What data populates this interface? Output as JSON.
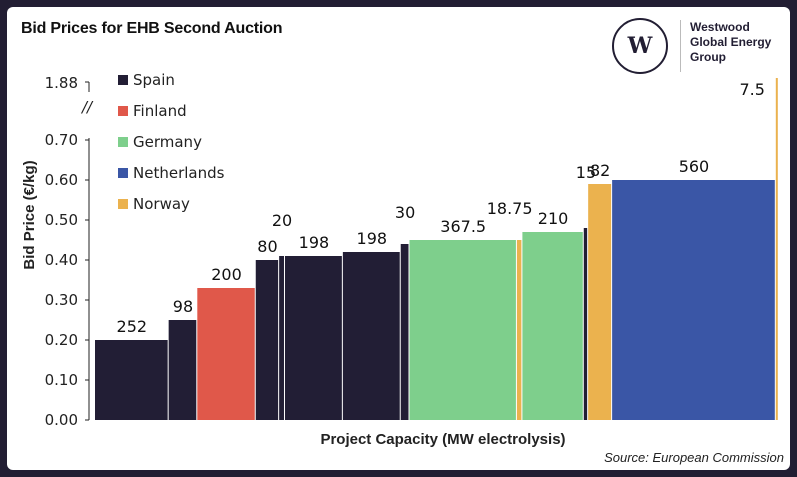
{
  "title": "Bid Prices for EHB Second Auction",
  "logo": {
    "mark": "W",
    "lines": [
      "Westwood",
      "Global Energy",
      "Group"
    ]
  },
  "source": "Source: European Commission",
  "chart_data": {
    "type": "bar",
    "variant": "variable-width (width = capacity)",
    "title": "Bid Prices for EHB Second Auction",
    "xlabel": "Project Capacity (MW electrolysis)",
    "ylabel": "Bid Price (€/kg)",
    "ylim": [
      0,
      0.7
    ],
    "y_break": {
      "after": 0.7,
      "top_tick": "1.88"
    },
    "yticks": [
      "0.00",
      "0.10",
      "0.20",
      "0.30",
      "0.40",
      "0.50",
      "0.60",
      "0.70"
    ],
    "grid": false,
    "legend_position": "top-left",
    "legend": [
      {
        "name": "Spain",
        "color": "#221e35"
      },
      {
        "name": "Finland",
        "color": "#e0584a"
      },
      {
        "name": "Germany",
        "color": "#7ecf8c"
      },
      {
        "name": "Netherlands",
        "color": "#3a56a6"
      },
      {
        "name": "Norway",
        "color": "#ebb24e"
      }
    ],
    "bars": [
      {
        "country": "Spain",
        "capacity": 252,
        "label": "252",
        "price": 0.2
      },
      {
        "country": "Spain",
        "capacity": 98,
        "label": "98",
        "price": 0.25
      },
      {
        "country": "Finland",
        "capacity": 200,
        "label": "200",
        "price": 0.33
      },
      {
        "country": "Spain",
        "capacity": 80,
        "label": "80",
        "price": 0.4
      },
      {
        "country": "Spain",
        "capacity": 20,
        "label": "20",
        "price": 0.41
      },
      {
        "country": "Spain",
        "capacity": 198,
        "label": "198",
        "price": 0.41
      },
      {
        "country": "Spain",
        "capacity": 198,
        "label": "198",
        "price": 0.42
      },
      {
        "country": "Spain",
        "capacity": 30,
        "label": "30",
        "price": 0.44
      },
      {
        "country": "Germany",
        "capacity": 367.5,
        "label": "367.5",
        "price": 0.45
      },
      {
        "country": "Norway",
        "capacity": 18.75,
        "label": "18.75",
        "price": 0.45
      },
      {
        "country": "Germany",
        "capacity": 210,
        "label": "210",
        "price": 0.47
      },
      {
        "country": "Spain",
        "capacity": 15,
        "label": "15",
        "price": 0.48
      },
      {
        "country": "Norway",
        "capacity": 82,
        "label": "82",
        "price": 0.59
      },
      {
        "country": "Netherlands",
        "capacity": 560,
        "label": "560",
        "price": 0.6
      },
      {
        "country": "Norway",
        "capacity": 7.5,
        "label": "7.5",
        "price": 1.88
      }
    ]
  }
}
